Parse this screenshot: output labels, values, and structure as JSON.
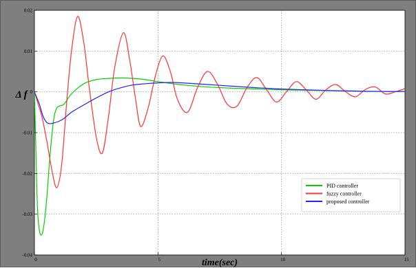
{
  "chart_data": {
    "type": "line",
    "title": "",
    "xlabel": "time(sec)",
    "ylabel": "Δ f",
    "xlim": [
      0,
      15
    ],
    "ylim": [
      -0.04,
      0.02
    ],
    "xticks": [
      0,
      5,
      10,
      15
    ],
    "xtick_labels": [
      "0",
      "5",
      "10",
      "15"
    ],
    "yticks": [
      0.02,
      0.01,
      0,
      -0.01,
      -0.02,
      -0.03,
      -0.04
    ],
    "ytick_labels": [
      "0.02",
      "0.01",
      "0",
      "-0.01",
      "-0.02",
      "-0.03",
      "-0.04"
    ],
    "grid": true,
    "legend_position": "bottom-right",
    "series": [
      {
        "name": "PID controller",
        "color": "#00d000",
        "x": [
          0,
          0.05,
          0.12,
          0.2,
          0.3,
          0.4,
          0.5,
          0.6,
          0.7,
          0.8,
          0.9,
          1.0,
          1.2,
          1.5,
          2.0,
          2.5,
          3.0,
          3.5,
          4.0,
          4.5,
          5.0,
          6.0,
          7.0,
          8.0,
          9.0,
          10.0,
          11.0,
          12.0,
          13.0,
          14.0,
          15.0
        ],
        "y": [
          0,
          -0.012,
          -0.028,
          -0.034,
          -0.035,
          -0.032,
          -0.026,
          -0.018,
          -0.011,
          -0.006,
          -0.004,
          -0.0035,
          -0.003,
          -0.0005,
          0.002,
          0.003,
          0.0033,
          0.0034,
          0.0033,
          0.003,
          0.0025,
          0.0017,
          0.0012,
          0.0009,
          0.0007,
          0.0005,
          0.0004,
          0.0003,
          0.0002,
          0.0001,
          0.0001
        ]
      },
      {
        "name": "fuzzy controller",
        "color": "#ff3030",
        "x": [
          0,
          0.15,
          0.3,
          0.5,
          0.7,
          0.9,
          1.1,
          1.3,
          1.5,
          1.75,
          2.0,
          2.2,
          2.5,
          2.75,
          3.0,
          3.25,
          3.6,
          3.85,
          4.1,
          4.3,
          4.6,
          4.9,
          5.2,
          5.5,
          5.8,
          6.2,
          6.6,
          7.0,
          7.4,
          7.8,
          8.2,
          8.6,
          9.0,
          9.4,
          9.8,
          10.2,
          10.6,
          11.0,
          11.4,
          11.8,
          12.2,
          12.6,
          13.0,
          13.4,
          13.8,
          14.2,
          14.6,
          15.0
        ],
        "y": [
          0,
          -0.003,
          -0.006,
          -0.012,
          -0.019,
          -0.0235,
          -0.018,
          -0.003,
          0.01,
          0.0185,
          0.012,
          0.002,
          -0.011,
          -0.015,
          -0.006,
          0.006,
          0.0145,
          0.008,
          -0.002,
          -0.0085,
          -0.004,
          0.004,
          0.0088,
          0.005,
          -0.002,
          -0.005,
          0.001,
          0.005,
          0.002,
          -0.003,
          -0.0035,
          0.001,
          0.0035,
          0.0005,
          -0.0025,
          0.0,
          0.0025,
          0.0005,
          -0.0018,
          0.0005,
          0.0018,
          0.0,
          -0.0012,
          0.0006,
          0.0012,
          -0.0005,
          0.0,
          0.0008
        ]
      },
      {
        "name": "proposed controller",
        "color": "#2020ff",
        "x": [
          0,
          0.1,
          0.2,
          0.35,
          0.5,
          0.65,
          0.8,
          1.0,
          1.2,
          1.5,
          2.0,
          2.5,
          3.0,
          3.5,
          4.0,
          4.5,
          5.0,
          5.5,
          6.0,
          7.0,
          8.0,
          9.0,
          10.0,
          11.0,
          12.0,
          13.0,
          14.0,
          15.0
        ],
        "y": [
          0,
          -0.0015,
          -0.003,
          -0.006,
          -0.0075,
          -0.0078,
          -0.0076,
          -0.0072,
          -0.0065,
          -0.005,
          -0.0032,
          -0.0015,
          0.0,
          0.001,
          0.0017,
          0.002,
          0.0022,
          0.0023,
          0.0022,
          0.0018,
          0.0014,
          0.001,
          0.0007,
          0.0005,
          0.0003,
          0.0002,
          0.0001,
          0.0001
        ]
      }
    ]
  }
}
